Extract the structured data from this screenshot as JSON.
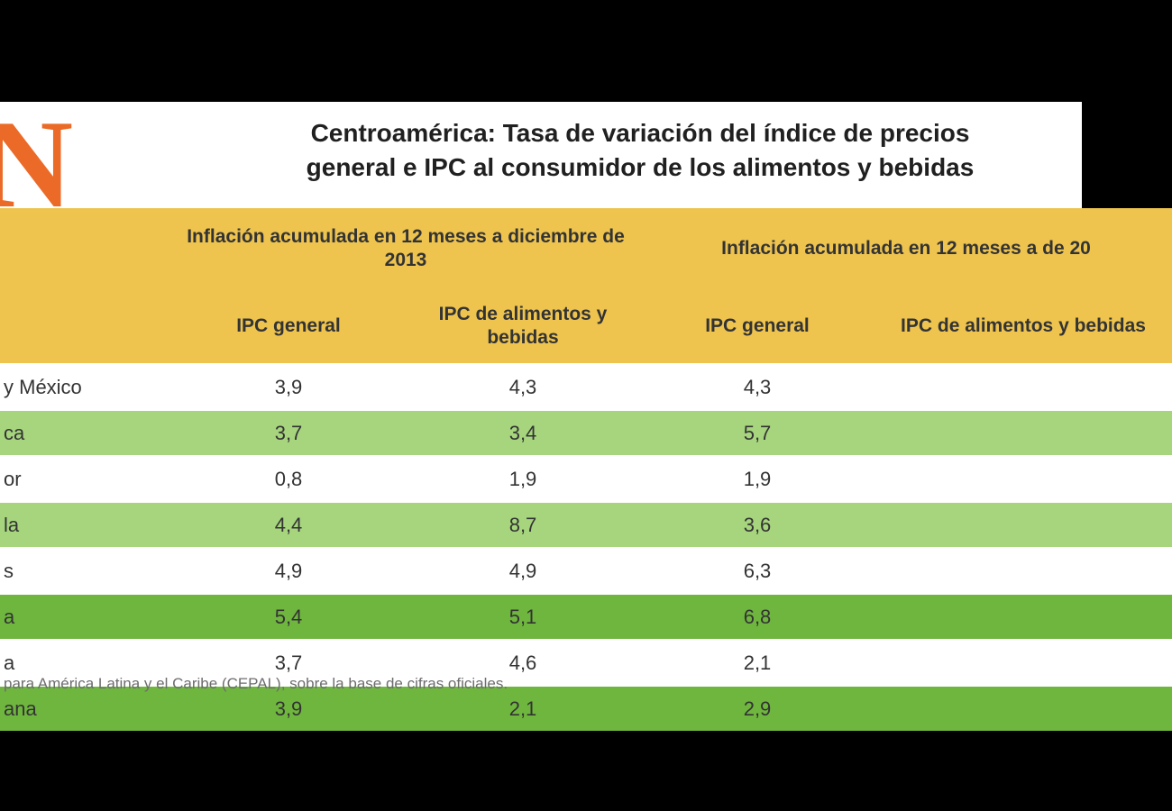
{
  "logo_text": "N",
  "title_line1": "Centroamérica: Tasa de variación del índice de precios",
  "title_line2": "general e IPC al consumidor de los alimentos y bebidas",
  "colors": {
    "page_bg": "#000000",
    "frame_bg": "#ffffff",
    "logo": "#ec6a27",
    "header_bg": "#eec44f",
    "row_white": "#ffffff",
    "row_green_light": "#a6d57e",
    "row_green_dark": "#6fb63f",
    "text": "#333333",
    "source_text": "#6d6d6d"
  },
  "header": {
    "group1": "Inflación acumulada en 12 meses a diciembre de 2013",
    "group2": "Inflación acumulada en 12 meses a de 20",
    "col1": "IPC general",
    "col2": "IPC de alimentos y bebidas",
    "col3": "IPC general",
    "col4": "IPC de alimentos y bebidas"
  },
  "rows": [
    {
      "label": "y México",
      "c1": "3,9",
      "c2": "4,3",
      "c3": "4,3",
      "c4": "",
      "bg": "#ffffff"
    },
    {
      "label": "ca",
      "c1": "3,7",
      "c2": "3,4",
      "c3": "5,7",
      "c4": "",
      "bg": "#a6d57e"
    },
    {
      "label": "or",
      "c1": "0,8",
      "c2": "1,9",
      "c3": "1,9",
      "c4": "",
      "bg": "#ffffff"
    },
    {
      "label": "la",
      "c1": "4,4",
      "c2": "8,7",
      "c3": "3,6",
      "c4": "",
      "bg": "#a6d57e"
    },
    {
      "label": "s",
      "c1": "4,9",
      "c2": "4,9",
      "c3": "6,3",
      "c4": "",
      "bg": "#ffffff"
    },
    {
      "label": "a",
      "c1": "5,4",
      "c2": "5,1",
      "c3": "6,8",
      "c4": "",
      "bg": "#6fb63f"
    },
    {
      "label": "a",
      "c1": "3,7",
      "c2": "4,6",
      "c3": "2,1",
      "c4": "",
      "bg": "#ffffff"
    },
    {
      "label": "ana",
      "c1": "3,9",
      "c2": "2,1",
      "c3": "2,9",
      "c4": "",
      "bg": "#6fb63f"
    }
  ],
  "source": "para América Latina y el Caribe (CEPAL), sobre la base de cifras oficiales."
}
